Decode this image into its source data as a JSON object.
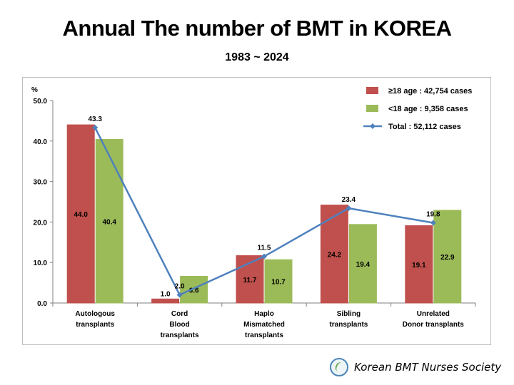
{
  "header": {
    "title": "Annual The number of BMT in KOREA",
    "subtitle": "1983 ~ 2024"
  },
  "footer": {
    "society_name": "Korean BMT Nurses Society",
    "logo_icon": "society-logo-icon"
  },
  "chart_data": {
    "type": "bar",
    "ylabel": "%",
    "ylim": [
      0,
      50
    ],
    "yticks": [
      "0.0",
      "10.0",
      "20.0",
      "30.0",
      "40.0",
      "50.0"
    ],
    "grid": false,
    "legend_position": "top-right",
    "categories": [
      [
        "Autologous",
        "transplants"
      ],
      [
        "Cord",
        "Blood",
        "transplants"
      ],
      [
        "Haplo",
        "Mismatched",
        "transplants"
      ],
      [
        "Sibling",
        "transplants"
      ],
      [
        "Unrelated",
        "Donor transplants"
      ]
    ],
    "series": [
      {
        "name": "≥18 age : 42,754 cases",
        "kind": "bar",
        "color": "#c0504d",
        "values": [
          44.0,
          1.0,
          11.7,
          24.2,
          19.1
        ],
        "labels": [
          "44.0",
          "1.0",
          "11.7",
          "24.2",
          "19.1"
        ]
      },
      {
        "name": "<18 age :  9,358 cases",
        "kind": "bar",
        "color": "#9bbb59",
        "values": [
          40.4,
          6.6,
          10.7,
          19.4,
          22.9
        ],
        "labels": [
          "40.4",
          "6.6",
          "10.7",
          "19.4",
          "22.9"
        ]
      },
      {
        "name": "Total     : 52,112 cases",
        "kind": "line",
        "color": "#4f81bd",
        "values": [
          43.3,
          2.0,
          11.5,
          23.4,
          19.8
        ],
        "labels": [
          "43.3",
          "2.0",
          "11.5",
          "23.4",
          "19.8"
        ]
      }
    ]
  }
}
